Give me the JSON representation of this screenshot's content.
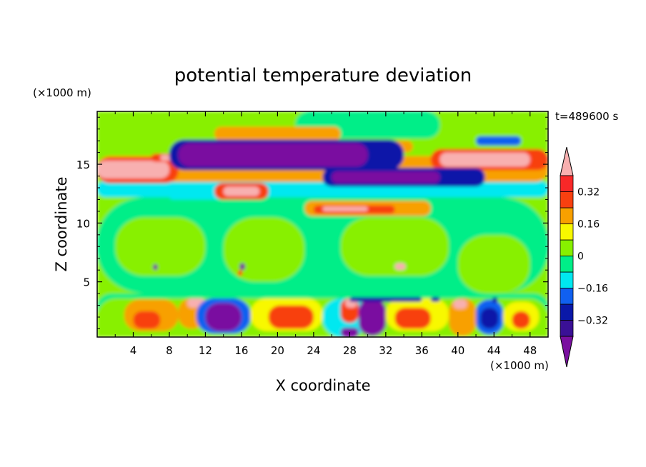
{
  "chart_data": {
    "type": "heatmap",
    "title": "potential temperature deviation",
    "xlabel": "X coordinate",
    "ylabel": "Z coordinate",
    "x_unit": "(×1000 m)",
    "y_unit": "(×1000 m)",
    "time_label": "t=489600 s",
    "xlim": [
      0,
      50
    ],
    "ylim": [
      0.3,
      19.5
    ],
    "x_ticks": [
      4,
      8,
      12,
      16,
      20,
      24,
      28,
      32,
      36,
      40,
      44,
      48
    ],
    "y_ticks": [
      5,
      10,
      15
    ],
    "colorbar": {
      "levels": [
        -0.4,
        -0.32,
        -0.24,
        -0.16,
        -0.08,
        0,
        0.08,
        0.16,
        0.24,
        0.32,
        0.4
      ],
      "labels": [
        "0.32",
        "0.16",
        "0",
        "−0.16",
        "−0.32"
      ],
      "label_values": [
        0.32,
        0.16,
        0,
        -0.16,
        -0.32
      ],
      "colors": [
        "#7a0fa0",
        "#3a1096",
        "#0a18a8",
        "#1060f0",
        "#00e8f0",
        "#00ee88",
        "#88f000",
        "#f8f800",
        "#f8a000",
        "#f84010",
        "#f82828",
        "#f8b0b0"
      ]
    },
    "field": [
      {
        "x": 0,
        "y": 0.3,
        "w": 50,
        "h": 19.2,
        "v": 0.03
      },
      {
        "x": 0,
        "y": 1.5,
        "w": 50,
        "h": 2.5,
        "v": -0.02
      },
      {
        "x": 0,
        "y": 4,
        "w": 50,
        "h": 8.2,
        "v": -0.02
      },
      {
        "x": 2,
        "y": 5.5,
        "w": 10,
        "h": 5,
        "v": 0.04
      },
      {
        "x": 14,
        "y": 5,
        "w": 9,
        "h": 5.5,
        "v": 0.04
      },
      {
        "x": 27,
        "y": 5.5,
        "w": 12,
        "h": 5,
        "v": 0.04
      },
      {
        "x": 40,
        "y": 4,
        "w": 8,
        "h": 5,
        "v": 0.04
      },
      {
        "x": 0,
        "y": 12.2,
        "w": 50,
        "h": 1.4,
        "v": -0.12
      },
      {
        "x": 8,
        "y": 12.0,
        "w": 6,
        "h": 0.6,
        "v": -0.12
      },
      {
        "x": 0,
        "y": 16.8,
        "w": 50,
        "h": 2.7,
        "v": 0.04
      },
      {
        "x": 22,
        "y": 17.2,
        "w": 16,
        "h": 2.3,
        "v": -0.03
      },
      {
        "x": 0,
        "y": 13.5,
        "w": 50,
        "h": 2.2,
        "v": 0.2
      },
      {
        "x": 0,
        "y": 13.4,
        "w": 9,
        "h": 2.2,
        "v": 0.3
      },
      {
        "x": 0,
        "y": 13.8,
        "w": 8,
        "h": 1.5,
        "v": 0.42
      },
      {
        "x": 37,
        "y": 14.5,
        "w": 13,
        "h": 1.8,
        "v": 0.3
      },
      {
        "x": 38,
        "y": 14.8,
        "w": 10,
        "h": 1.2,
        "v": 0.42
      },
      {
        "x": 13,
        "y": 12.0,
        "w": 6,
        "h": 1.4,
        "v": 0.3
      },
      {
        "x": 14,
        "y": 12.3,
        "w": 4,
        "h": 0.8,
        "v": 0.42
      },
      {
        "x": 6,
        "y": 15.2,
        "w": 10,
        "h": 0.7,
        "v": 0.3
      },
      {
        "x": 7,
        "y": 15.3,
        "w": 6,
        "h": 0.5,
        "v": 0.42
      },
      {
        "x": 13,
        "y": 17.0,
        "w": 14,
        "h": 1.2,
        "v": 0.2
      },
      {
        "x": 31,
        "y": 16.0,
        "w": 4,
        "h": 1,
        "v": 0.2
      },
      {
        "x": 8,
        "y": 14.5,
        "w": 26,
        "h": 2.6,
        "v": -0.24
      },
      {
        "x": 9,
        "y": 14.8,
        "w": 21,
        "h": 2.0,
        "v": -0.4
      },
      {
        "x": 25,
        "y": 13.1,
        "w": 18,
        "h": 1.6,
        "v": -0.24
      },
      {
        "x": 26,
        "y": 13.4,
        "w": 12,
        "h": 1.0,
        "v": -0.4
      },
      {
        "x": 42,
        "y": 16.6,
        "w": 5,
        "h": 0.8,
        "v": -0.2
      },
      {
        "x": 23,
        "y": 10.6,
        "w": 14,
        "h": 1.3,
        "v": 0.2
      },
      {
        "x": 24,
        "y": 10.8,
        "w": 9,
        "h": 0.7,
        "v": 0.3
      },
      {
        "x": 25,
        "y": 11.0,
        "w": 5,
        "h": 0.4,
        "v": 0.42
      },
      {
        "x": 0,
        "y": 0.3,
        "w": 50,
        "h": 3.3,
        "v": 0.06
      },
      {
        "x": 3,
        "y": 0.8,
        "w": 6,
        "h": 2.7,
        "v": 0.2
      },
      {
        "x": 4,
        "y": 1.0,
        "w": 3,
        "h": 1.5,
        "v": 0.3
      },
      {
        "x": 9,
        "y": 1.0,
        "w": 3,
        "h": 2.6,
        "v": 0.2
      },
      {
        "x": 10,
        "y": 2.8,
        "w": 2,
        "h": 0.8,
        "v": 0.42
      },
      {
        "x": 11,
        "y": 0.6,
        "w": 6,
        "h": 3.0,
        "v": -0.2
      },
      {
        "x": 12,
        "y": 0.8,
        "w": 4,
        "h": 2.4,
        "v": -0.4
      },
      {
        "x": 17,
        "y": 0.8,
        "w": 8,
        "h": 2.8,
        "v": 0.15
      },
      {
        "x": 19,
        "y": 1.0,
        "w": 5,
        "h": 2.0,
        "v": 0.3
      },
      {
        "x": 25,
        "y": 0.3,
        "w": 5,
        "h": 3.3,
        "v": -0.1
      },
      {
        "x": 27,
        "y": 1.5,
        "w": 2,
        "h": 2.1,
        "v": 0.3
      },
      {
        "x": 27.5,
        "y": 2.8,
        "w": 1.3,
        "h": 0.8,
        "v": 0.42
      },
      {
        "x": 27,
        "y": 0.3,
        "w": 2,
        "h": 0.8,
        "v": -0.4
      },
      {
        "x": 29,
        "y": 0.4,
        "w": 3,
        "h": 3.2,
        "v": -0.4
      },
      {
        "x": 32,
        "y": 0.8,
        "w": 7,
        "h": 2.8,
        "v": 0.15
      },
      {
        "x": 33,
        "y": 1.0,
        "w": 4,
        "h": 1.8,
        "v": 0.3
      },
      {
        "x": 39,
        "y": 0.4,
        "w": 3,
        "h": 3.2,
        "v": 0.2
      },
      {
        "x": 39.5,
        "y": 2.7,
        "w": 1.5,
        "h": 0.8,
        "v": 0.42
      },
      {
        "x": 42,
        "y": 0.5,
        "w": 3,
        "h": 3.0,
        "v": -0.16
      },
      {
        "x": 42.5,
        "y": 1.0,
        "w": 2,
        "h": 1.8,
        "v": -0.3
      },
      {
        "x": 45,
        "y": 0.8,
        "w": 4,
        "h": 2.5,
        "v": 0.15
      },
      {
        "x": 46,
        "y": 1.0,
        "w": 2,
        "h": 1.5,
        "v": 0.25
      },
      {
        "x": 28,
        "y": 3.3,
        "w": 8,
        "h": 0.4,
        "v": -0.3
      },
      {
        "x": 37,
        "y": 3.3,
        "w": 1,
        "h": 0.4,
        "v": -0.3
      },
      {
        "x": 43.8,
        "y": 3.2,
        "w": 0.6,
        "h": 0.5,
        "v": -0.3
      },
      {
        "x": 6.2,
        "y": 6.0,
        "w": 0.5,
        "h": 0.5,
        "v": -0.4
      },
      {
        "x": 15.8,
        "y": 6.0,
        "w": 0.6,
        "h": 0.6,
        "v": -0.4
      },
      {
        "x": 15.6,
        "y": 5.5,
        "w": 0.5,
        "h": 0.5,
        "v": 0.3
      },
      {
        "x": 33,
        "y": 6.0,
        "w": 1.2,
        "h": 0.6,
        "v": 0.42
      }
    ]
  }
}
